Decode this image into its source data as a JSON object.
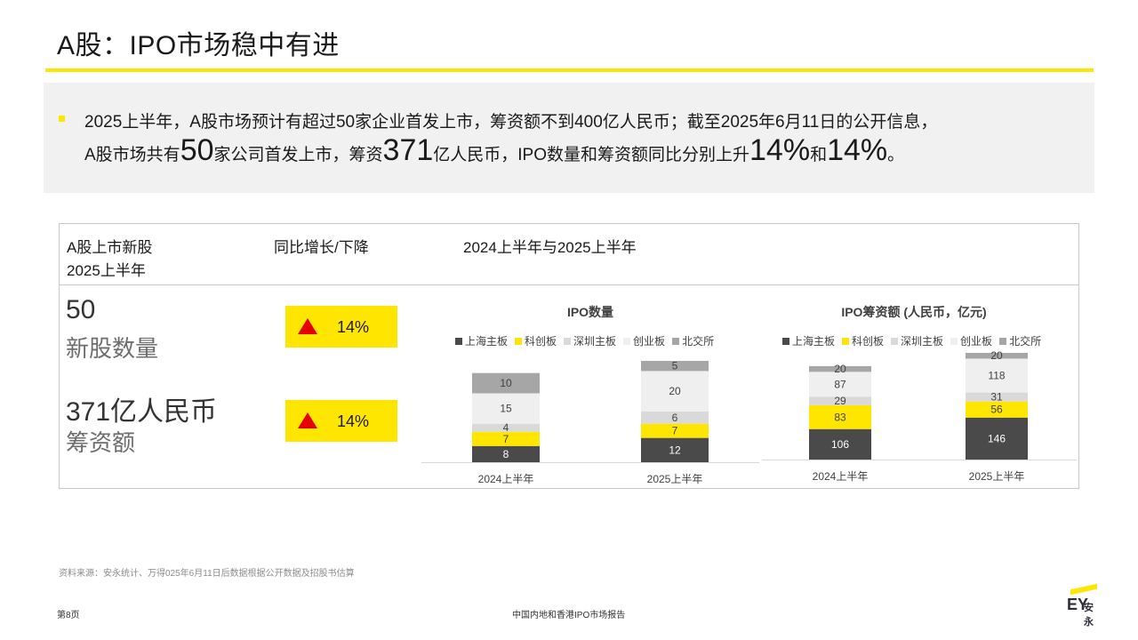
{
  "title": "A股：IPO市场稳中有进",
  "summary": {
    "line1": "2025上半年，A股市场预计有超过50家企业首发上市，筹资额不到400亿人民币；截至2025年6月11日的公开信息，",
    "line2_a": "A股市场共有",
    "line2_num1": "50",
    "line2_b": "家公司首发上市，筹资",
    "line2_num2": "371",
    "line2_c": "亿人民币，IPO数量和筹资额同比分别上升",
    "line2_pct1": "14%",
    "line2_d": "和",
    "line2_pct2": "14%",
    "line2_e": "。"
  },
  "panel": {
    "header_col1_line1": "A股上市新股",
    "header_col1_line2": "2025上半年",
    "header_col2": "同比增长/下降",
    "header_col3": "2024上半年与2025上半年",
    "kpi1_value": "50",
    "kpi1_label": "新股数量",
    "kpi2_value": "371亿人民币",
    "kpi2_label": "筹资额",
    "yoy1": "14%",
    "yoy2": "14%"
  },
  "colors": {
    "yellow": "#ffe600",
    "dark": "#4a4a4a",
    "light_gray": "#dcdcdc",
    "lighter_gray": "#eeeeee",
    "mid_gray": "#a6a6a6",
    "up_arrow": "#e60000"
  },
  "legend": [
    "上海主板",
    "科创板",
    "深圳主板",
    "创业板",
    "北交所"
  ],
  "chart_data": [
    {
      "type": "bar",
      "stacked": true,
      "title": "IPO数量",
      "categories": [
        "2024上半年",
        "2025上半年"
      ],
      "series": [
        {
          "name": "上海主板",
          "values": [
            8,
            12
          ],
          "color": "#4a4a4a"
        },
        {
          "name": "科创板",
          "values": [
            7,
            7
          ],
          "color": "#ffe600"
        },
        {
          "name": "深圳主板",
          "values": [
            4,
            6
          ],
          "color": "#d9d9d9"
        },
        {
          "name": "创业板",
          "values": [
            15,
            20
          ],
          "color": "#efefef"
        },
        {
          "name": "北交所",
          "values": [
            10,
            5
          ],
          "color": "#a6a6a6"
        }
      ]
    },
    {
      "type": "bar",
      "stacked": true,
      "title": "IPO筹资额 (人民币，亿元)",
      "categories": [
        "2024上半年",
        "2025上半年"
      ],
      "series": [
        {
          "name": "上海主板",
          "values": [
            106,
            146
          ],
          "color": "#4a4a4a"
        },
        {
          "name": "科创板",
          "values": [
            83,
            56
          ],
          "color": "#ffe600"
        },
        {
          "name": "深圳主板",
          "values": [
            29,
            31
          ],
          "color": "#d9d9d9"
        },
        {
          "name": "创业板",
          "values": [
            87,
            118
          ],
          "color": "#efefef"
        },
        {
          "name": "北交所",
          "values": [
            20,
            20
          ],
          "color": "#a6a6a6"
        }
      ]
    }
  ],
  "footer": {
    "source": "资料来源：安永统计、万得025年6月11日后数据根据公开数据及招股书估算",
    "page": "第8页",
    "report": "中国内地和香港IPO市场报告",
    "logo_ey": "EY",
    "logo_cn": "安永"
  }
}
